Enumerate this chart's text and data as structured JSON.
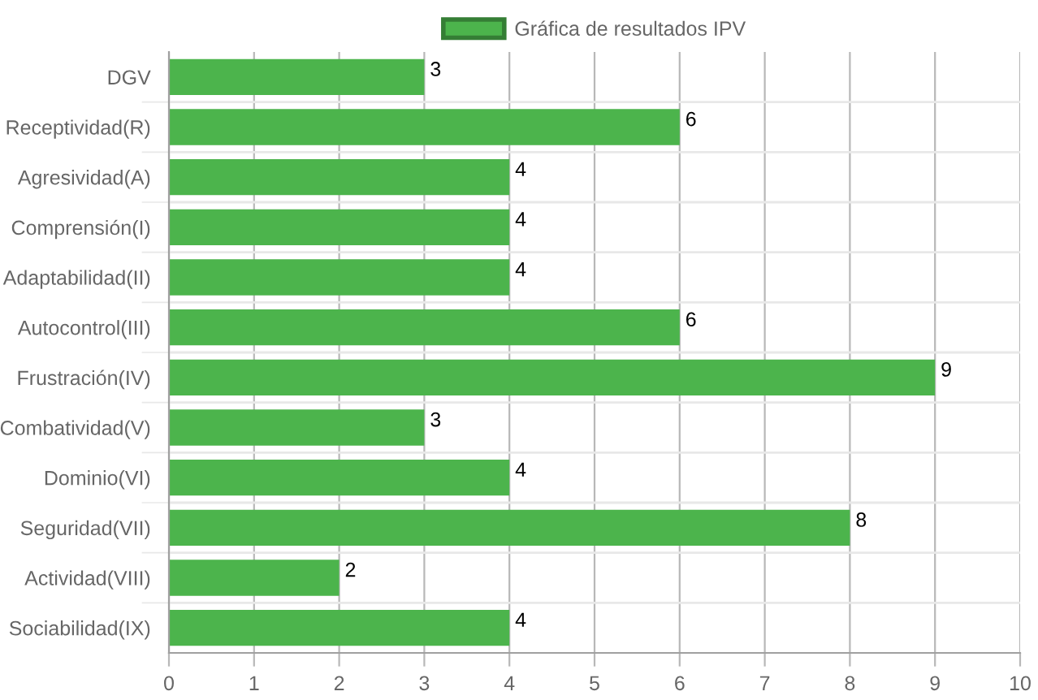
{
  "chart_data": {
    "type": "bar",
    "orientation": "horizontal",
    "categories": [
      "DGV",
      "Receptividad(R)",
      "Agresividad(A)",
      "Comprensión(I)",
      "Adaptabilidad(II)",
      "Autocontrol(III)",
      "Frustración(IV)",
      "Combatividad(V)",
      "Dominio(VI)",
      "Seguridad(VII)",
      "Actividad(VIII)",
      "Sociabilidad(IX)"
    ],
    "series": [
      {
        "name": "Gráfica de resultados IPV",
        "color": "#4cb44c",
        "values": [
          3,
          6,
          4,
          4,
          4,
          6,
          9,
          3,
          4,
          8,
          2,
          4
        ]
      }
    ],
    "xlim": [
      0,
      10
    ],
    "xticks": [
      0,
      1,
      2,
      3,
      4,
      5,
      6,
      7,
      8,
      9,
      10
    ],
    "grid": true,
    "legend": "top",
    "data_labels": true
  }
}
